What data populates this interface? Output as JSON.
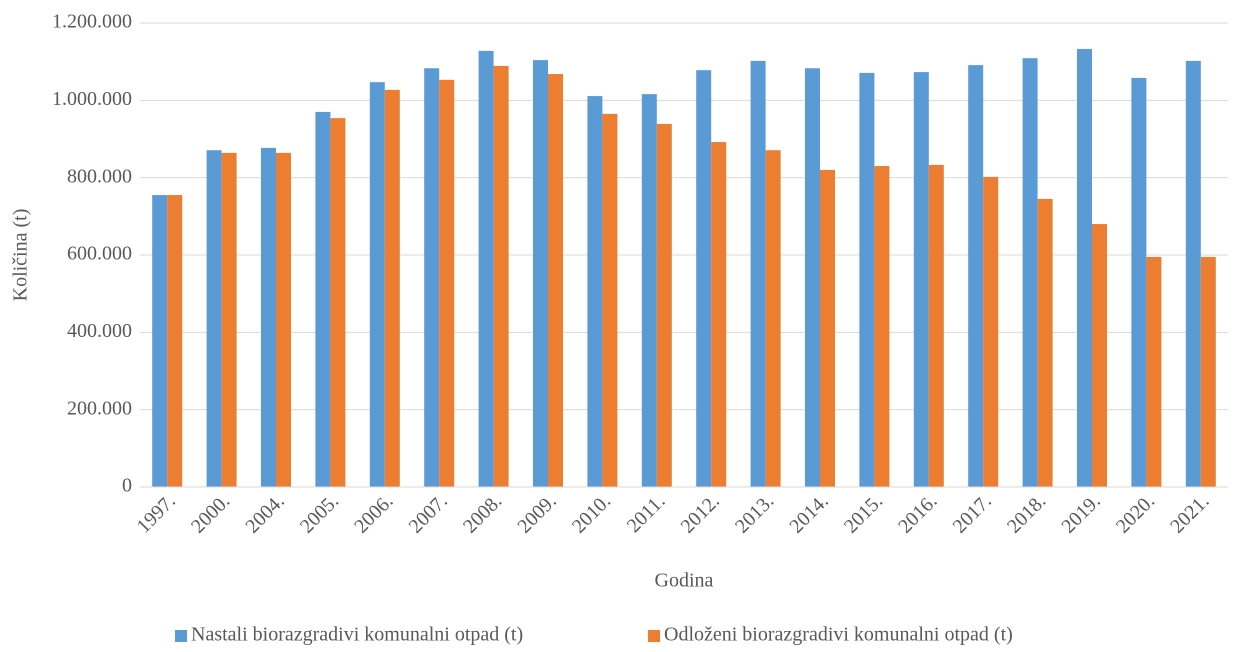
{
  "chart_data": {
    "type": "bar",
    "x_label": "Godina",
    "y_label": "Količina (t)",
    "categories": [
      "1997.",
      "2000.",
      "2004.",
      "2005.",
      "2006.",
      "2007.",
      "2008.",
      "2009.",
      "2010.",
      "2011.",
      "2012.",
      "2013.",
      "2014.",
      "2015.",
      "2016.",
      "2017.",
      "2018.",
      "2019.",
      "2020.",
      "2021."
    ],
    "series": [
      {
        "name": "Nastali biorazgradivi komunalni otpad (t)",
        "color": "#5b9bd5",
        "values": [
          755000,
          871000,
          877000,
          970000,
          1047000,
          1083000,
          1128000,
          1104000,
          1011000,
          1016000,
          1078000,
          1102000,
          1083000,
          1071000,
          1073000,
          1091000,
          1109000,
          1133000,
          1058000,
          1102000
        ]
      },
      {
        "name": "Odloženi biorazgradivi komunalni otpad (t)",
        "color": "#ed7d31",
        "values": [
          755000,
          864000,
          864000,
          954000,
          1027000,
          1053000,
          1089000,
          1068000,
          965000,
          939000,
          892000,
          871000,
          820000,
          830000,
          833000,
          802000,
          745000,
          680000,
          595000,
          595000
        ]
      }
    ],
    "ylim": [
      0,
      1200000
    ],
    "yticks": [
      0,
      {
        "value": 200000,
        "label": "200.000"
      },
      {
        "value": 400000,
        "label": "400.000"
      },
      {
        "value": 600000,
        "label": "600.000"
      },
      {
        "value": 800000,
        "label": "800.000"
      },
      {
        "value": 1000000,
        "label": "1.000.000"
      },
      {
        "value": 1200000,
        "label": "1.200.000"
      }
    ],
    "grid": true,
    "legend": "bottom"
  }
}
